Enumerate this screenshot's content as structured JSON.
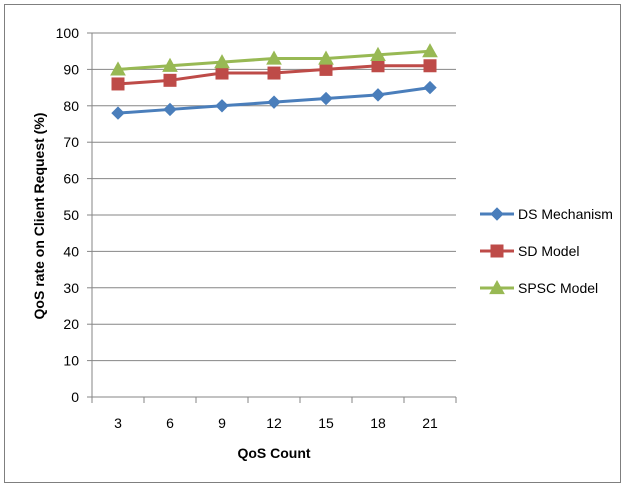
{
  "chart_data": {
    "type": "line",
    "title": "",
    "xlabel": "QoS Count",
    "ylabel": "QoS rate on Client Request (%)",
    "x": [
      3,
      6,
      9,
      12,
      15,
      18,
      21
    ],
    "ylim": [
      0,
      100
    ],
    "yticks": [
      0,
      10,
      20,
      30,
      40,
      50,
      60,
      70,
      80,
      90,
      100
    ],
    "grid": "horizontal",
    "legend_position": "right",
    "series": [
      {
        "name": "DS Mechanism",
        "values": [
          78,
          79,
          80,
          81,
          82,
          83,
          85
        ],
        "color": "#4a7ebb",
        "marker": "diamond"
      },
      {
        "name": "SD Model",
        "values": [
          86,
          87,
          89,
          89,
          90,
          91,
          91
        ],
        "color": "#be4b48",
        "marker": "square"
      },
      {
        "name": "SPSC Model",
        "values": [
          90,
          91,
          92,
          93,
          93,
          94,
          95
        ],
        "color": "#98b954",
        "marker": "triangle"
      }
    ]
  }
}
